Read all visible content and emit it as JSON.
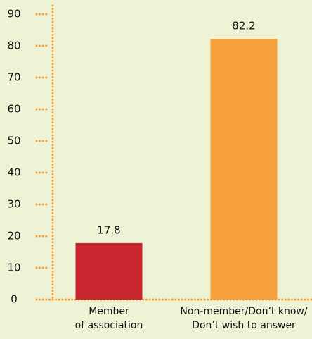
{
  "chart_data": {
    "type": "bar",
    "categories": [
      "Member\nof association",
      "Non-member/Don’t know/\nDon’t wish to answer"
    ],
    "values": [
      17.8,
      82.2
    ],
    "colors": [
      "#c9252f",
      "#f5a03a"
    ],
    "ylim": [
      0,
      90
    ],
    "yticks": [
      0,
      10,
      20,
      30,
      40,
      50,
      60,
      70,
      80,
      90
    ]
  }
}
